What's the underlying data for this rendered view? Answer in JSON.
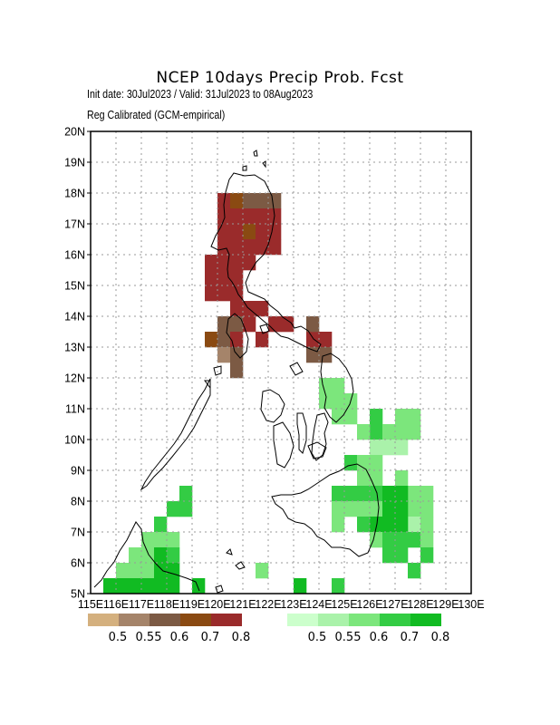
{
  "header": {
    "title": "NCEP 10days Precip Prob. Fcst",
    "subtitle1": "Init date: 30Jul2023 / Valid: 31Jul2023 to 08Aug2023",
    "subtitle2": "Reg Calibrated (GCM-empirical)"
  },
  "map": {
    "lat_labels": [
      "5N",
      "6N",
      "7N",
      "8N",
      "9N",
      "10N",
      "11N",
      "12N",
      "13N",
      "14N",
      "15N",
      "16N",
      "17N",
      "18N",
      "19N",
      "20N"
    ],
    "lon_labels": [
      "115E",
      "116E",
      "117E",
      "118E",
      "119E",
      "120E",
      "121E",
      "122E",
      "123E",
      "124E",
      "125E",
      "126E",
      "127E",
      "128E",
      "129E",
      "130E"
    ],
    "lat_range": [
      5,
      20
    ],
    "lon_range": [
      115,
      130
    ],
    "grid": "dotted"
  },
  "legend": {
    "dry": {
      "colors": [
        "#d4b07e",
        "#a5846a",
        "#7c5a44",
        "#8a4a12",
        "#9a2b2b"
      ],
      "labels": [
        "0.5",
        "0.55",
        "0.6",
        "0.7",
        "0.8"
      ]
    },
    "wet": {
      "colors": [
        "#ccffcc",
        "#aaf2aa",
        "#7ce67c",
        "#33cc44",
        "#11bb22"
      ],
      "labels": [
        "0.5",
        "0.55",
        "0.6",
        "0.7",
        "0.8"
      ]
    }
  }
}
